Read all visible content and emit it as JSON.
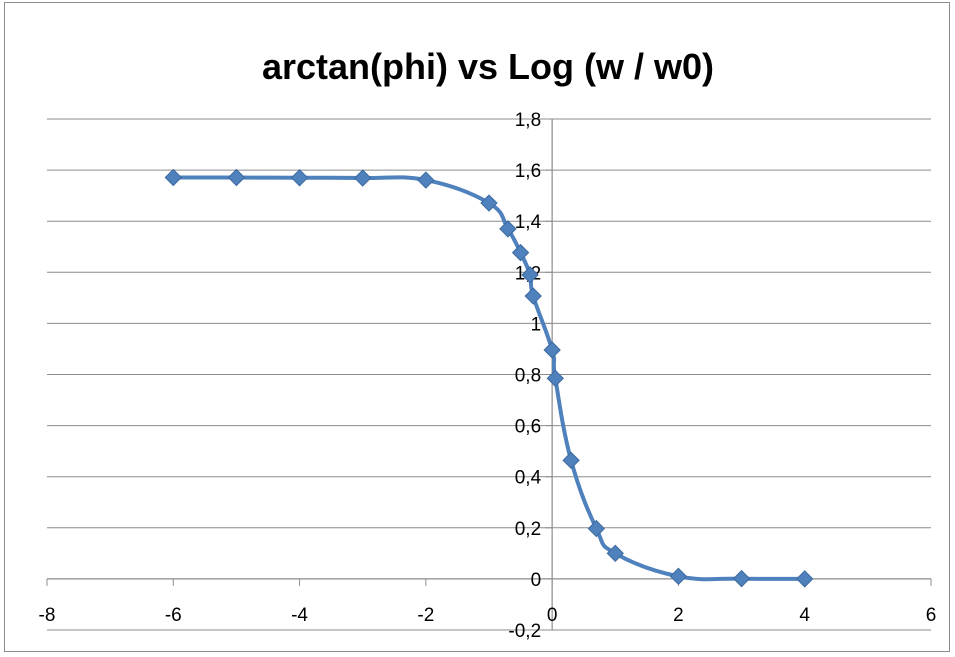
{
  "chart_data": {
    "type": "line",
    "title": "arctan(phi) vs Log (w / w0)",
    "xlabel": "",
    "ylabel": "",
    "xlim": [
      -8,
      6
    ],
    "ylim": [
      -0.2,
      1.8
    ],
    "x_ticks": [
      -8,
      -6,
      -4,
      -2,
      0,
      2,
      4,
      6
    ],
    "y_ticks": [
      -0.2,
      0,
      0.2,
      0.4,
      0.6,
      0.8,
      1,
      1.2,
      1.4,
      1.6,
      1.8
    ],
    "x_tick_labels": [
      "-8",
      "-6",
      "-4",
      "-2",
      "0",
      "2",
      "4",
      "6"
    ],
    "y_tick_labels": [
      "-0,2",
      "0",
      "0,2",
      "0,4",
      "0,6",
      "0,8",
      "1",
      "1,2",
      "1,4",
      "1,6",
      "1,8"
    ],
    "grid": "horizontal",
    "legend": "none",
    "line_color": "#4F81BD",
    "marker": "diamond",
    "smooth": true,
    "series": [
      {
        "x": [
          -6,
          -5,
          -4,
          -3,
          -2,
          -1,
          -0.7,
          -0.5,
          -0.35,
          -0.3,
          0,
          0.05,
          0.3,
          0.7,
          1,
          2,
          3,
          4
        ],
        "y": [
          1.571,
          1.571,
          1.57,
          1.569,
          1.561,
          1.471,
          1.37,
          1.277,
          1.19,
          1.107,
          0.896,
          0.785,
          0.464,
          0.197,
          0.1,
          0.01,
          0.001,
          0.0001
        ]
      }
    ]
  }
}
